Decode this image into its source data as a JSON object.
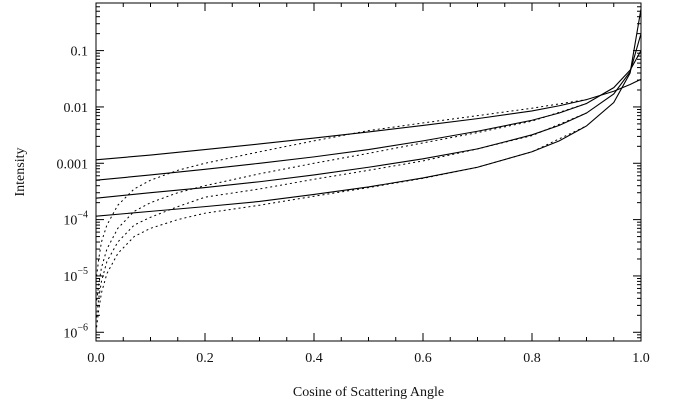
{
  "chart_data": {
    "type": "line",
    "title": "",
    "xlabel": "Cosine of Scattering Angle",
    "ylabel": "Intensity",
    "xlim": [
      0.0,
      1.0
    ],
    "ylim": [
      7e-07,
      0.7
    ],
    "yscale": "log",
    "grid": false,
    "legend": "none",
    "x_ticks": [
      {
        "value": 0.0,
        "label": "0.0"
      },
      {
        "value": 0.2,
        "label": "0.2"
      },
      {
        "value": 0.4,
        "label": "0.4"
      },
      {
        "value": 0.6,
        "label": "0.6"
      },
      {
        "value": 0.8,
        "label": "0.8"
      },
      {
        "value": 1.0,
        "label": "1.0"
      }
    ],
    "y_ticks": [
      {
        "value": 0.1,
        "base": "0.1",
        "exp": ""
      },
      {
        "value": 0.01,
        "base": "0.01",
        "exp": ""
      },
      {
        "value": 0.001,
        "base": "0.001",
        "exp": ""
      },
      {
        "value": 0.0001,
        "base": "10",
        "exp": "−4"
      },
      {
        "value": 1e-05,
        "base": "10",
        "exp": "−5"
      },
      {
        "value": 1e-06,
        "base": "10",
        "exp": "−6"
      }
    ],
    "series": [
      {
        "style": "solid",
        "x": [
          0.0,
          0.1,
          0.2,
          0.3,
          0.4,
          0.5,
          0.6,
          0.7,
          0.8,
          0.85,
          0.9,
          0.95,
          0.98,
          1.0
        ],
        "y": [
          0.00115,
          0.0014,
          0.00175,
          0.0022,
          0.0028,
          0.0036,
          0.0047,
          0.0062,
          0.0085,
          0.0105,
          0.0135,
          0.019,
          0.025,
          0.031
        ]
      },
      {
        "style": "solid",
        "x": [
          0.0,
          0.1,
          0.2,
          0.3,
          0.4,
          0.5,
          0.6,
          0.7,
          0.8,
          0.85,
          0.9,
          0.95,
          0.98,
          1.0
        ],
        "y": [
          0.0005,
          0.00062,
          0.00078,
          0.001,
          0.0013,
          0.00175,
          0.0025,
          0.0037,
          0.0058,
          0.0078,
          0.0115,
          0.022,
          0.045,
          0.1
        ]
      },
      {
        "style": "solid",
        "x": [
          0.0,
          0.1,
          0.2,
          0.3,
          0.4,
          0.5,
          0.6,
          0.7,
          0.8,
          0.85,
          0.9,
          0.95,
          0.98,
          1.0
        ],
        "y": [
          0.00024,
          0.0003,
          0.00037,
          0.00047,
          0.00062,
          0.00085,
          0.0012,
          0.0018,
          0.0032,
          0.0047,
          0.0078,
          0.017,
          0.042,
          0.2
        ]
      },
      {
        "style": "solid",
        "x": [
          0.0,
          0.1,
          0.2,
          0.3,
          0.4,
          0.5,
          0.6,
          0.7,
          0.8,
          0.85,
          0.9,
          0.95,
          0.98,
          1.0
        ],
        "y": [
          0.000115,
          0.00014,
          0.00017,
          0.00021,
          0.00028,
          0.00038,
          0.00055,
          0.00085,
          0.0016,
          0.0025,
          0.0046,
          0.012,
          0.04,
          0.55
        ]
      },
      {
        "style": "dotted",
        "x": [
          0.0,
          0.005,
          0.01,
          0.02,
          0.04,
          0.07,
          0.1,
          0.15,
          0.2,
          0.3,
          0.4,
          0.5,
          0.6,
          0.7,
          0.8,
          0.9
        ],
        "y": [
          8e-06,
          2e-05,
          4e-05,
          8e-05,
          0.00018,
          0.00035,
          0.0005,
          0.00075,
          0.001,
          0.0016,
          0.0025,
          0.0038,
          0.0052,
          0.007,
          0.0095,
          0.0135
        ]
      },
      {
        "style": "dotted",
        "x": [
          0.0,
          0.005,
          0.01,
          0.02,
          0.04,
          0.07,
          0.1,
          0.15,
          0.2,
          0.3,
          0.4,
          0.5,
          0.6,
          0.7,
          0.8,
          0.9
        ],
        "y": [
          3e-06,
          7e-06,
          1.4e-05,
          3e-05,
          7e-05,
          0.00014,
          0.0002,
          0.0003,
          0.0004,
          0.00065,
          0.001,
          0.0015,
          0.0023,
          0.0035,
          0.0056,
          0.0115
        ]
      },
      {
        "style": "dotted",
        "x": [
          0.0,
          0.005,
          0.01,
          0.02,
          0.04,
          0.07,
          0.1,
          0.15,
          0.2,
          0.3,
          0.4,
          0.5,
          0.6,
          0.7,
          0.8,
          0.9
        ],
        "y": [
          1.5e-06,
          4e-06,
          8e-06,
          1.8e-05,
          4e-05,
          8e-05,
          0.00011,
          0.00017,
          0.00025,
          0.00035,
          0.00052,
          0.00075,
          0.0011,
          0.0018,
          0.0031,
          0.0078
        ]
      },
      {
        "style": "dotted",
        "x": [
          0.0,
          0.005,
          0.01,
          0.02,
          0.04,
          0.07,
          0.1,
          0.15,
          0.2,
          0.3,
          0.4,
          0.5,
          0.6,
          0.7,
          0.8,
          0.9
        ],
        "y": [
          1e-06,
          2.5e-06,
          5e-06,
          1.1e-05,
          2.5e-05,
          5e-05,
          7e-05,
          0.0001,
          0.00013,
          0.00018,
          0.00026,
          0.00037,
          0.00054,
          0.00085,
          0.0016,
          0.0046
        ]
      }
    ]
  }
}
